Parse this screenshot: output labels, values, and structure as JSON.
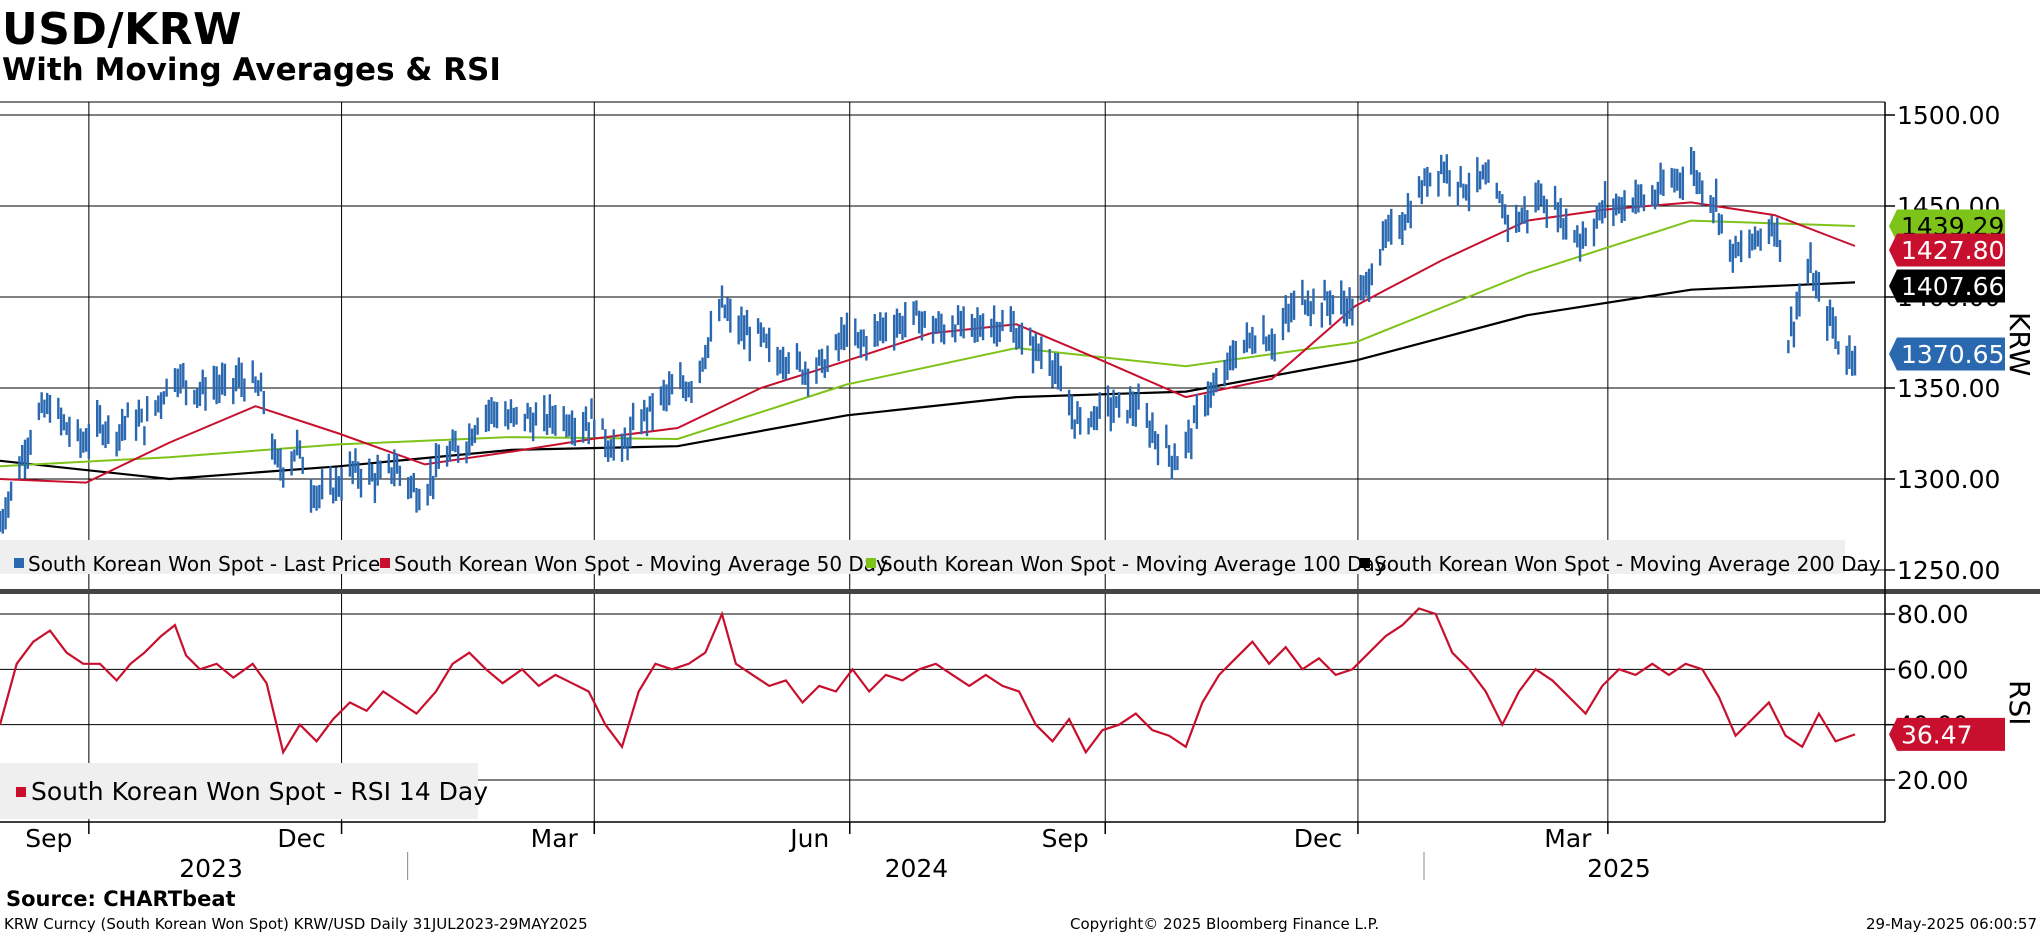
{
  "title": "USD/KRW",
  "subtitle": "With Moving Averages & RSI",
  "source": "Source: CHARTbeat",
  "footer": {
    "left": "KRW Curncy (South Korean Won Spot) KRW/USD  Daily 31JUL2023-29MAY2025",
    "center": "Copyright© 2025 Bloomberg Finance L.P.",
    "right": "29-May-2025 06:00:57"
  },
  "colors": {
    "price": "#2a68b0",
    "ma50": "#c8102e",
    "ma100": "#7ec31a",
    "ma200": "#000000",
    "rsi": "#c8102e",
    "label_bg_price": "#2a68b0"
  },
  "chart_data": [
    {
      "type": "bar",
      "name": "price_panel",
      "ylabel": "KRW",
      "ylim": [
        1250,
        1500
      ],
      "yticks": [
        "1250.00",
        "1300.00",
        "1350.00",
        "1400.00",
        "1450.00",
        "1500.00"
      ],
      "x_months": [
        "Sep",
        "Dec",
        "Mar",
        "Jun",
        "Sep",
        "Dec",
        "Mar"
      ],
      "x_years": [
        "2023",
        "2024",
        "2025"
      ],
      "last_values": {
        "ma100": "1439.29",
        "ma50": "1427.80",
        "ma200": "1407.66",
        "price": "1370.65"
      },
      "legend": [
        {
          "label": "South Korean Won Spot - Last Price",
          "color": "#2a68b0"
        },
        {
          "label": "South Korean Won Spot - Moving Average 50 Day",
          "color": "#c8102e"
        },
        {
          "label": "South Korean Won Spot - Moving Average 100 Day",
          "color": "#7ec31a"
        },
        {
          "label": "South Korean Won Spot - Moving Average 200 Day",
          "color": "#000000"
        }
      ],
      "date_range": [
        "2023-07-31",
        "2025-05-29"
      ],
      "price_points": [
        [
          "2023-07-31",
          1275
        ],
        [
          "2023-08-05",
          1298
        ],
        [
          "2023-08-10",
          1320
        ],
        [
          "2023-08-14",
          1335
        ],
        [
          "2023-08-18",
          1340
        ],
        [
          "2023-08-24",
          1328
        ],
        [
          "2023-08-30",
          1320
        ],
        [
          "2023-09-05",
          1330
        ],
        [
          "2023-09-11",
          1325
        ],
        [
          "2023-09-16",
          1335
        ],
        [
          "2023-09-21",
          1330
        ],
        [
          "2023-09-27",
          1345
        ],
        [
          "2023-10-02",
          1358
        ],
        [
          "2023-10-06",
          1352
        ],
        [
          "2023-10-11",
          1348
        ],
        [
          "2023-10-16",
          1352
        ],
        [
          "2023-10-21",
          1350
        ],
        [
          "2023-10-25",
          1355
        ],
        [
          "2023-10-30",
          1352
        ],
        [
          "2023-11-03",
          1345
        ],
        [
          "2023-11-07",
          1310
        ],
        [
          "2023-11-11",
          1305
        ],
        [
          "2023-11-15",
          1318
        ],
        [
          "2023-11-20",
          1295
        ],
        [
          "2023-11-25",
          1290
        ],
        [
          "2023-11-30",
          1298
        ],
        [
          "2023-12-05",
          1305
        ],
        [
          "2023-12-10",
          1302
        ],
        [
          "2023-12-15",
          1300
        ],
        [
          "2023-12-20",
          1307
        ],
        [
          "2023-12-25",
          1298
        ],
        [
          "2023-12-30",
          1290
        ],
        [
          "2024-01-05",
          1308
        ],
        [
          "2024-01-10",
          1315
        ],
        [
          "2024-01-15",
          1320
        ],
        [
          "2024-01-20",
          1335
        ],
        [
          "2024-01-25",
          1338
        ],
        [
          "2024-01-30",
          1332
        ],
        [
          "2024-02-05",
          1335
        ],
        [
          "2024-02-10",
          1330
        ],
        [
          "2024-02-15",
          1335
        ],
        [
          "2024-02-20",
          1333
        ],
        [
          "2024-02-25",
          1330
        ],
        [
          "2024-03-01",
          1333
        ],
        [
          "2024-03-06",
          1320
        ],
        [
          "2024-03-11",
          1315
        ],
        [
          "2024-03-16",
          1330
        ],
        [
          "2024-03-21",
          1338
        ],
        [
          "2024-03-26",
          1345
        ],
        [
          "2024-03-31",
          1350
        ],
        [
          "2024-04-05",
          1352
        ],
        [
          "2024-04-10",
          1370
        ],
        [
          "2024-04-16",
          1395
        ],
        [
          "2024-04-20",
          1385
        ],
        [
          "2024-04-25",
          1380
        ],
        [
          "2024-04-30",
          1378
        ],
        [
          "2024-05-05",
          1365
        ],
        [
          "2024-05-10",
          1368
        ],
        [
          "2024-05-15",
          1360
        ],
        [
          "2024-05-20",
          1362
        ],
        [
          "2024-05-25",
          1365
        ],
        [
          "2024-05-30",
          1380
        ],
        [
          "2024-06-04",
          1375
        ],
        [
          "2024-06-09",
          1378
        ],
        [
          "2024-06-14",
          1385
        ],
        [
          "2024-06-19",
          1385
        ],
        [
          "2024-06-24",
          1390
        ],
        [
          "2024-06-29",
          1385
        ],
        [
          "2024-07-04",
          1382
        ],
        [
          "2024-07-09",
          1385
        ],
        [
          "2024-07-14",
          1382
        ],
        [
          "2024-07-19",
          1385
        ],
        [
          "2024-07-24",
          1385
        ],
        [
          "2024-07-29",
          1383
        ],
        [
          "2024-08-03",
          1375
        ],
        [
          "2024-08-08",
          1370
        ],
        [
          "2024-08-13",
          1365
        ],
        [
          "2024-08-18",
          1340
        ],
        [
          "2024-08-23",
          1330
        ],
        [
          "2024-08-28",
          1335
        ],
        [
          "2024-09-02",
          1340
        ],
        [
          "2024-09-07",
          1338
        ],
        [
          "2024-09-12",
          1340
        ],
        [
          "2024-09-17",
          1328
        ],
        [
          "2024-09-22",
          1318
        ],
        [
          "2024-09-27",
          1310
        ],
        [
          "2024-10-02",
          1325
        ],
        [
          "2024-10-07",
          1345
        ],
        [
          "2024-10-12",
          1350
        ],
        [
          "2024-10-17",
          1368
        ],
        [
          "2024-10-22",
          1375
        ],
        [
          "2024-10-27",
          1380
        ],
        [
          "2024-11-01",
          1375
        ],
        [
          "2024-11-06",
          1390
        ],
        [
          "2024-11-11",
          1400
        ],
        [
          "2024-11-16",
          1395
        ],
        [
          "2024-11-21",
          1398
        ],
        [
          "2024-11-26",
          1395
        ],
        [
          "2024-12-01",
          1395
        ],
        [
          "2024-12-06",
          1415
        ],
        [
          "2024-12-11",
          1432
        ],
        [
          "2024-12-16",
          1440
        ],
        [
          "2024-12-21",
          1450
        ],
        [
          "2024-12-26",
          1465
        ],
        [
          "2024-12-31",
          1472
        ],
        [
          "2025-01-05",
          1465
        ],
        [
          "2025-01-10",
          1460
        ],
        [
          "2025-01-15",
          1465
        ],
        [
          "2025-01-20",
          1455
        ],
        [
          "2025-01-25",
          1440
        ],
        [
          "2025-01-30",
          1445
        ],
        [
          "2025-02-04",
          1455
        ],
        [
          "2025-02-09",
          1450
        ],
        [
          "2025-02-14",
          1440
        ],
        [
          "2025-02-19",
          1432
        ],
        [
          "2025-02-24",
          1440
        ],
        [
          "2025-03-01",
          1452
        ],
        [
          "2025-03-06",
          1450
        ],
        [
          "2025-03-11",
          1455
        ],
        [
          "2025-03-16",
          1452
        ],
        [
          "2025-03-21",
          1460
        ],
        [
          "2025-03-26",
          1465
        ],
        [
          "2025-03-31",
          1472
        ],
        [
          "2025-04-04",
          1460
        ],
        [
          "2025-04-09",
          1452
        ],
        [
          "2025-04-14",
          1425
        ],
        [
          "2025-04-19",
          1425
        ],
        [
          "2025-04-24",
          1432
        ],
        [
          "2025-04-29",
          1440
        ],
        [
          "2025-05-03",
          1430
        ],
        [
          "2025-05-05",
          1375
        ],
        [
          "2025-05-09",
          1400
        ],
        [
          "2025-05-13",
          1415
        ],
        [
          "2025-05-17",
          1395
        ],
        [
          "2025-05-21",
          1385
        ],
        [
          "2025-05-25",
          1365
        ],
        [
          "2025-05-29",
          1371
        ]
      ],
      "ma50_points": [
        [
          "2023-07-31",
          1300
        ],
        [
          "2023-08-31",
          1298
        ],
        [
          "2023-09-30",
          1320
        ],
        [
          "2023-10-31",
          1340
        ],
        [
          "2023-11-30",
          1325
        ],
        [
          "2023-12-31",
          1308
        ],
        [
          "2024-01-31",
          1315
        ],
        [
          "2024-02-29",
          1322
        ],
        [
          "2024-03-31",
          1328
        ],
        [
          "2024-04-30",
          1350
        ],
        [
          "2024-05-31",
          1365
        ],
        [
          "2024-06-30",
          1380
        ],
        [
          "2024-07-31",
          1385
        ],
        [
          "2024-08-31",
          1365
        ],
        [
          "2024-09-30",
          1345
        ],
        [
          "2024-10-31",
          1355
        ],
        [
          "2024-11-30",
          1395
        ],
        [
          "2024-12-31",
          1420
        ],
        [
          "2025-01-31",
          1442
        ],
        [
          "2025-02-28",
          1448
        ],
        [
          "2025-03-31",
          1452
        ],
        [
          "2025-04-30",
          1445
        ],
        [
          "2025-05-29",
          1428
        ]
      ],
      "ma100_points": [
        [
          "2023-07-31",
          1307
        ],
        [
          "2023-09-30",
          1312
        ],
        [
          "2023-11-30",
          1319
        ],
        [
          "2024-01-31",
          1323
        ],
        [
          "2024-03-31",
          1322
        ],
        [
          "2024-05-31",
          1352
        ],
        [
          "2024-07-31",
          1372
        ],
        [
          "2024-09-30",
          1362
        ],
        [
          "2024-11-30",
          1375
        ],
        [
          "2025-01-31",
          1413
        ],
        [
          "2025-03-31",
          1442
        ],
        [
          "2025-05-29",
          1439
        ]
      ],
      "ma200_points": [
        [
          "2023-07-31",
          1310
        ],
        [
          "2023-09-30",
          1300
        ],
        [
          "2023-11-30",
          1307
        ],
        [
          "2024-01-31",
          1316
        ],
        [
          "2024-03-31",
          1318
        ],
        [
          "2024-05-31",
          1335
        ],
        [
          "2024-07-31",
          1345
        ],
        [
          "2024-09-30",
          1348
        ],
        [
          "2024-11-30",
          1365
        ],
        [
          "2025-01-31",
          1390
        ],
        [
          "2025-03-31",
          1404
        ],
        [
          "2025-05-29",
          1408
        ]
      ]
    },
    {
      "type": "line",
      "name": "rsi_panel",
      "ylabel": "RSI",
      "ylim": [
        5,
        90
      ],
      "yticks": [
        "20.00",
        "40.00",
        "60.00",
        "80.00"
      ],
      "last_value": "36.47",
      "legend": [
        {
          "label": "South Korean Won Spot - RSI 14 Day",
          "color": "#c8102e"
        }
      ],
      "rsi_points": [
        [
          "2023-07-31",
          40
        ],
        [
          "2023-08-06",
          62
        ],
        [
          "2023-08-12",
          70
        ],
        [
          "2023-08-18",
          74
        ],
        [
          "2023-08-24",
          66
        ],
        [
          "2023-08-30",
          62
        ],
        [
          "2023-09-05",
          62
        ],
        [
          "2023-09-11",
          56
        ],
        [
          "2023-09-16",
          62
        ],
        [
          "2023-09-21",
          66
        ],
        [
          "2023-09-27",
          72
        ],
        [
          "2023-10-02",
          76
        ],
        [
          "2023-10-06",
          65
        ],
        [
          "2023-10-11",
          60
        ],
        [
          "2023-10-17",
          62
        ],
        [
          "2023-10-23",
          57
        ],
        [
          "2023-10-30",
          62
        ],
        [
          "2023-11-04",
          55
        ],
        [
          "2023-11-10",
          30
        ],
        [
          "2023-11-16",
          40
        ],
        [
          "2023-11-22",
          34
        ],
        [
          "2023-11-28",
          42
        ],
        [
          "2023-12-04",
          48
        ],
        [
          "2023-12-10",
          45
        ],
        [
          "2023-12-16",
          52
        ],
        [
          "2023-12-22",
          48
        ],
        [
          "2023-12-28",
          44
        ],
        [
          "2024-01-04",
          52
        ],
        [
          "2024-01-10",
          62
        ],
        [
          "2024-01-16",
          66
        ],
        [
          "2024-01-22",
          60
        ],
        [
          "2024-01-28",
          55
        ],
        [
          "2024-02-04",
          60
        ],
        [
          "2024-02-10",
          54
        ],
        [
          "2024-02-16",
          58
        ],
        [
          "2024-02-22",
          55
        ],
        [
          "2024-02-28",
          52
        ],
        [
          "2024-03-05",
          40
        ],
        [
          "2024-03-11",
          32
        ],
        [
          "2024-03-17",
          52
        ],
        [
          "2024-03-23",
          62
        ],
        [
          "2024-03-29",
          60
        ],
        [
          "2024-04-04",
          62
        ],
        [
          "2024-04-10",
          66
        ],
        [
          "2024-04-16",
          80
        ],
        [
          "2024-04-21",
          62
        ],
        [
          "2024-04-27",
          58
        ],
        [
          "2024-05-03",
          54
        ],
        [
          "2024-05-09",
          56
        ],
        [
          "2024-05-15",
          48
        ],
        [
          "2024-05-21",
          54
        ],
        [
          "2024-05-27",
          52
        ],
        [
          "2024-06-02",
          60
        ],
        [
          "2024-06-08",
          52
        ],
        [
          "2024-06-14",
          58
        ],
        [
          "2024-06-20",
          56
        ],
        [
          "2024-06-26",
          60
        ],
        [
          "2024-07-02",
          62
        ],
        [
          "2024-07-08",
          58
        ],
        [
          "2024-07-14",
          54
        ],
        [
          "2024-07-20",
          58
        ],
        [
          "2024-07-26",
          54
        ],
        [
          "2024-08-01",
          52
        ],
        [
          "2024-08-07",
          40
        ],
        [
          "2024-08-13",
          34
        ],
        [
          "2024-08-19",
          42
        ],
        [
          "2024-08-25",
          30
        ],
        [
          "2024-08-31",
          38
        ],
        [
          "2024-09-06",
          40
        ],
        [
          "2024-09-12",
          44
        ],
        [
          "2024-09-18",
          38
        ],
        [
          "2024-09-24",
          36
        ],
        [
          "2024-09-30",
          32
        ],
        [
          "2024-10-06",
          48
        ],
        [
          "2024-10-12",
          58
        ],
        [
          "2024-10-18",
          64
        ],
        [
          "2024-10-24",
          70
        ],
        [
          "2024-10-30",
          62
        ],
        [
          "2024-11-05",
          68
        ],
        [
          "2024-11-11",
          60
        ],
        [
          "2024-11-17",
          64
        ],
        [
          "2024-11-23",
          58
        ],
        [
          "2024-11-29",
          60
        ],
        [
          "2024-12-05",
          66
        ],
        [
          "2024-12-11",
          72
        ],
        [
          "2024-12-17",
          76
        ],
        [
          "2024-12-23",
          82
        ],
        [
          "2024-12-29",
          80
        ],
        [
          "2025-01-04",
          66
        ],
        [
          "2025-01-10",
          60
        ],
        [
          "2025-01-16",
          52
        ],
        [
          "2025-01-22",
          40
        ],
        [
          "2025-01-28",
          52
        ],
        [
          "2025-02-03",
          60
        ],
        [
          "2025-02-09",
          56
        ],
        [
          "2025-02-15",
          50
        ],
        [
          "2025-02-21",
          44
        ],
        [
          "2025-02-27",
          54
        ],
        [
          "2025-03-05",
          60
        ],
        [
          "2025-03-11",
          58
        ],
        [
          "2025-03-17",
          62
        ],
        [
          "2025-03-23",
          58
        ],
        [
          "2025-03-29",
          62
        ],
        [
          "2025-04-04",
          60
        ],
        [
          "2025-04-10",
          50
        ],
        [
          "2025-04-16",
          36
        ],
        [
          "2025-04-22",
          42
        ],
        [
          "2025-04-28",
          48
        ],
        [
          "2025-05-04",
          36
        ],
        [
          "2025-05-10",
          32
        ],
        [
          "2025-05-16",
          44
        ],
        [
          "2025-05-22",
          34
        ],
        [
          "2025-05-29",
          36.47
        ]
      ]
    }
  ]
}
